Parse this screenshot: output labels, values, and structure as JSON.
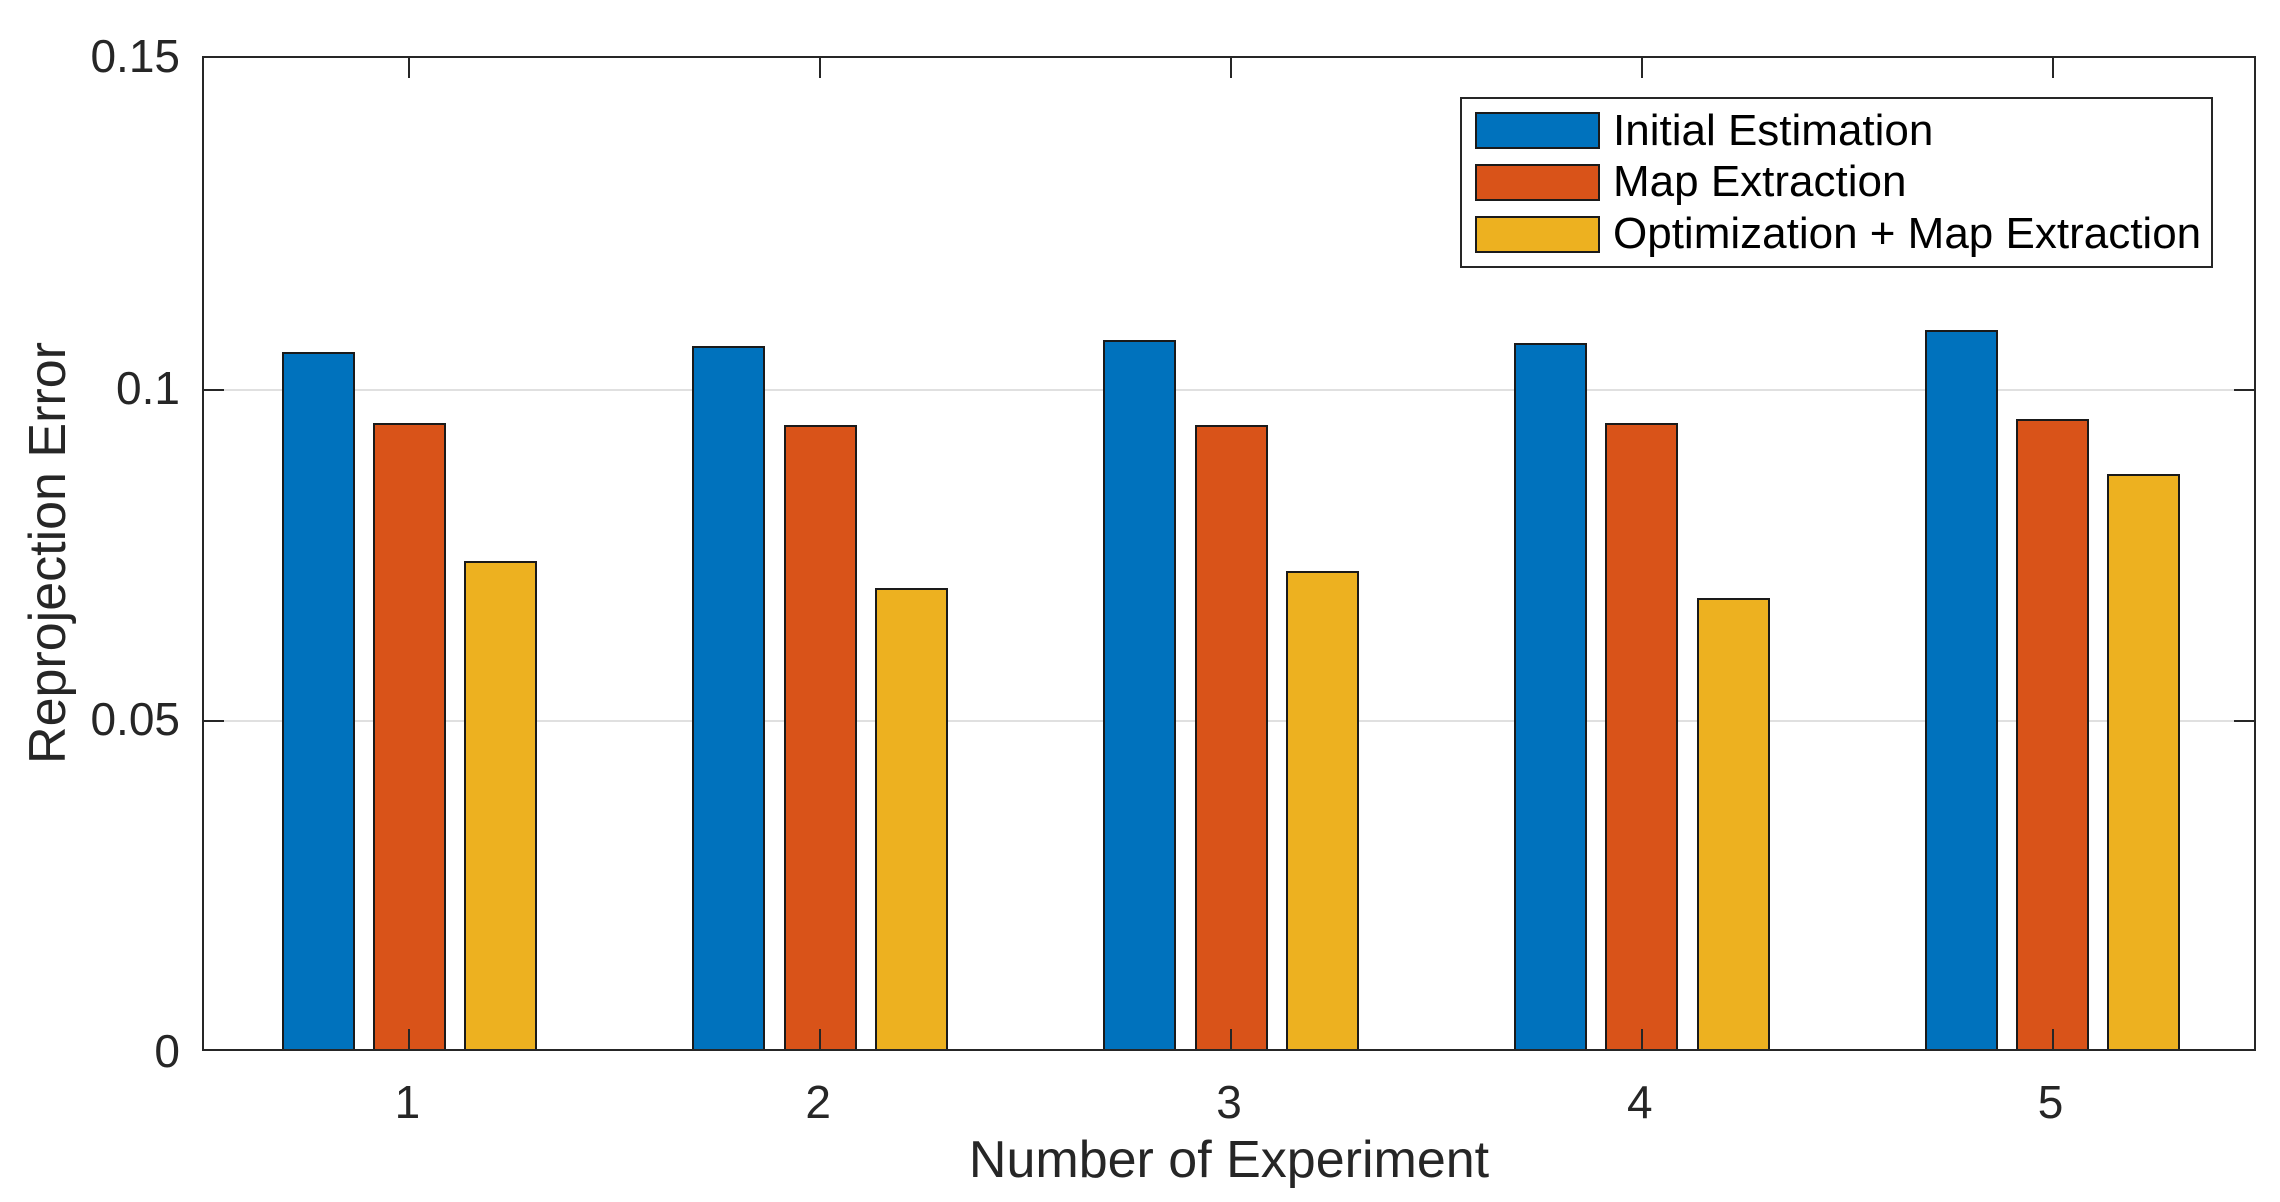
{
  "figure": {
    "background": "#ffffff"
  },
  "chart_data": {
    "type": "bar",
    "title": "",
    "xlabel": "Number of Experiment",
    "ylabel": "Reprojection Error",
    "categories": [
      "1",
      "2",
      "3",
      "4",
      "5"
    ],
    "series": [
      {
        "name": "Initial Estimation",
        "color": "#0072BD",
        "values": [
          0.1051,
          0.106,
          0.1069,
          0.1065,
          0.1084
        ]
      },
      {
        "name": "Map Extraction",
        "color": "#D95319",
        "values": [
          0.0943,
          0.0941,
          0.0941,
          0.0944,
          0.095
        ]
      },
      {
        "name": "Optimization + Map Extraction",
        "color": "#EDB120",
        "values": [
          0.0735,
          0.0695,
          0.0721,
          0.068,
          0.0867
        ]
      }
    ],
    "ylim": [
      0,
      0.15
    ],
    "yticks": [
      0,
      0.05,
      0.1,
      0.15
    ],
    "ytick_labels": [
      "0",
      "0.05",
      "0.1",
      "0.15"
    ],
    "grid": "y",
    "grid_color": "#e0e0e0",
    "axis_color": "#262626",
    "bar_edge_color": "#1a1a1a",
    "legend": {
      "position": "top-right",
      "border_color": "#262626",
      "background": "#ffffff"
    }
  }
}
